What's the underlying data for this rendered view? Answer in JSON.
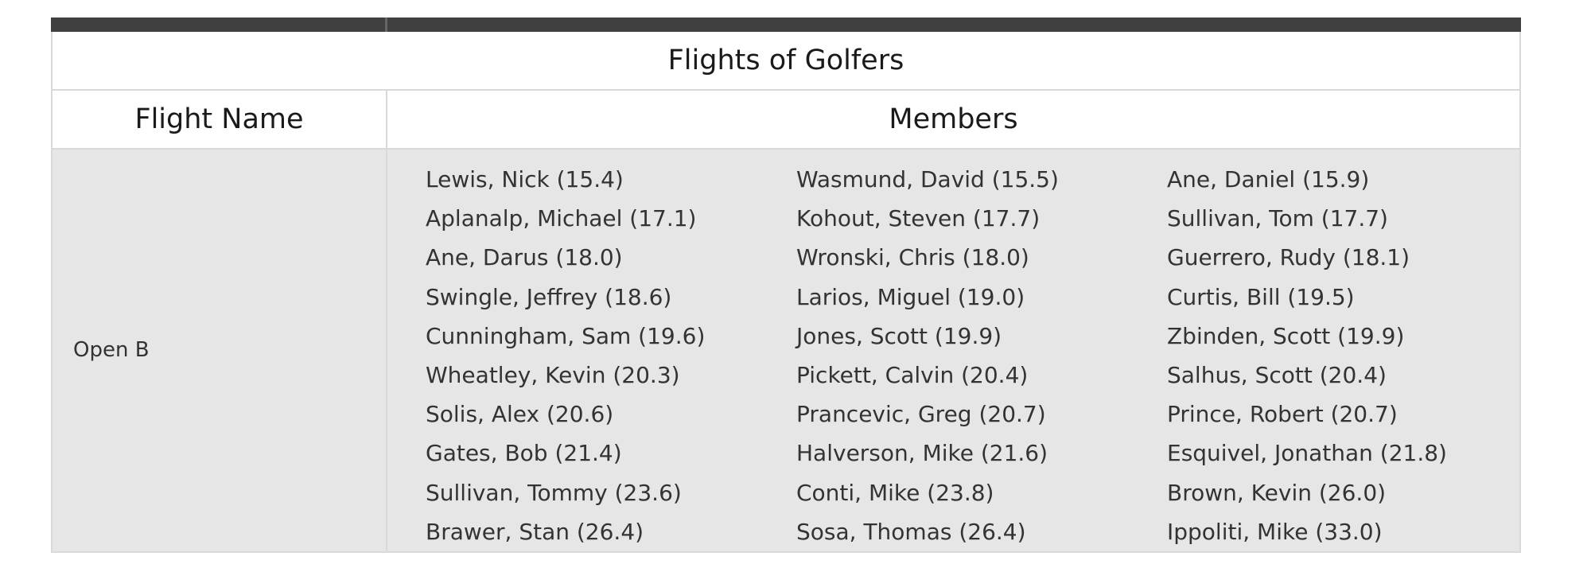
{
  "table": {
    "title": "Flights of Golfers",
    "columns": [
      "Flight Name",
      "Members"
    ],
    "rows": [
      {
        "flight_name": "Open B",
        "members": [
          "Lewis, Nick (15.4)",
          "Wasmund, David (15.5)",
          "Ane, Daniel (15.9)",
          "Aplanalp, Michael (17.1)",
          "Kohout, Steven (17.7)",
          "Sullivan, Tom (17.7)",
          "Ane, Darus (18.0)",
          "Wronski, Chris (18.0)",
          "Guerrero, Rudy (18.1)",
          "Swingle, Jeffrey (18.6)",
          "Larios, Miguel (19.0)",
          "Curtis, Bill (19.5)",
          "Cunningham, Sam (19.6)",
          "Jones, Scott (19.9)",
          "Zbinden, Scott (19.9)",
          "Wheatley, Kevin (20.3)",
          "Pickett, Calvin (20.4)",
          "Salhus, Scott (20.4)",
          "Solis, Alex (20.6)",
          "Prancevic, Greg (20.7)",
          "Prince, Robert (20.7)",
          "Gates, Bob (21.4)",
          "Halverson, Mike (21.6)",
          "Esquivel, Jonathan (21.8)",
          "Sullivan, Tommy (23.6)",
          "Conti, Mike (23.8)",
          "Brown, Kevin (26.0)",
          "Brawer, Stan (26.4)",
          "Sosa, Thomas (26.4)",
          "Ippoliti, Mike (33.0)"
        ]
      }
    ]
  },
  "colors": {
    "header_bar": "#404040",
    "row_background": "#e6e6e6",
    "border": "#d9d9d9"
  }
}
